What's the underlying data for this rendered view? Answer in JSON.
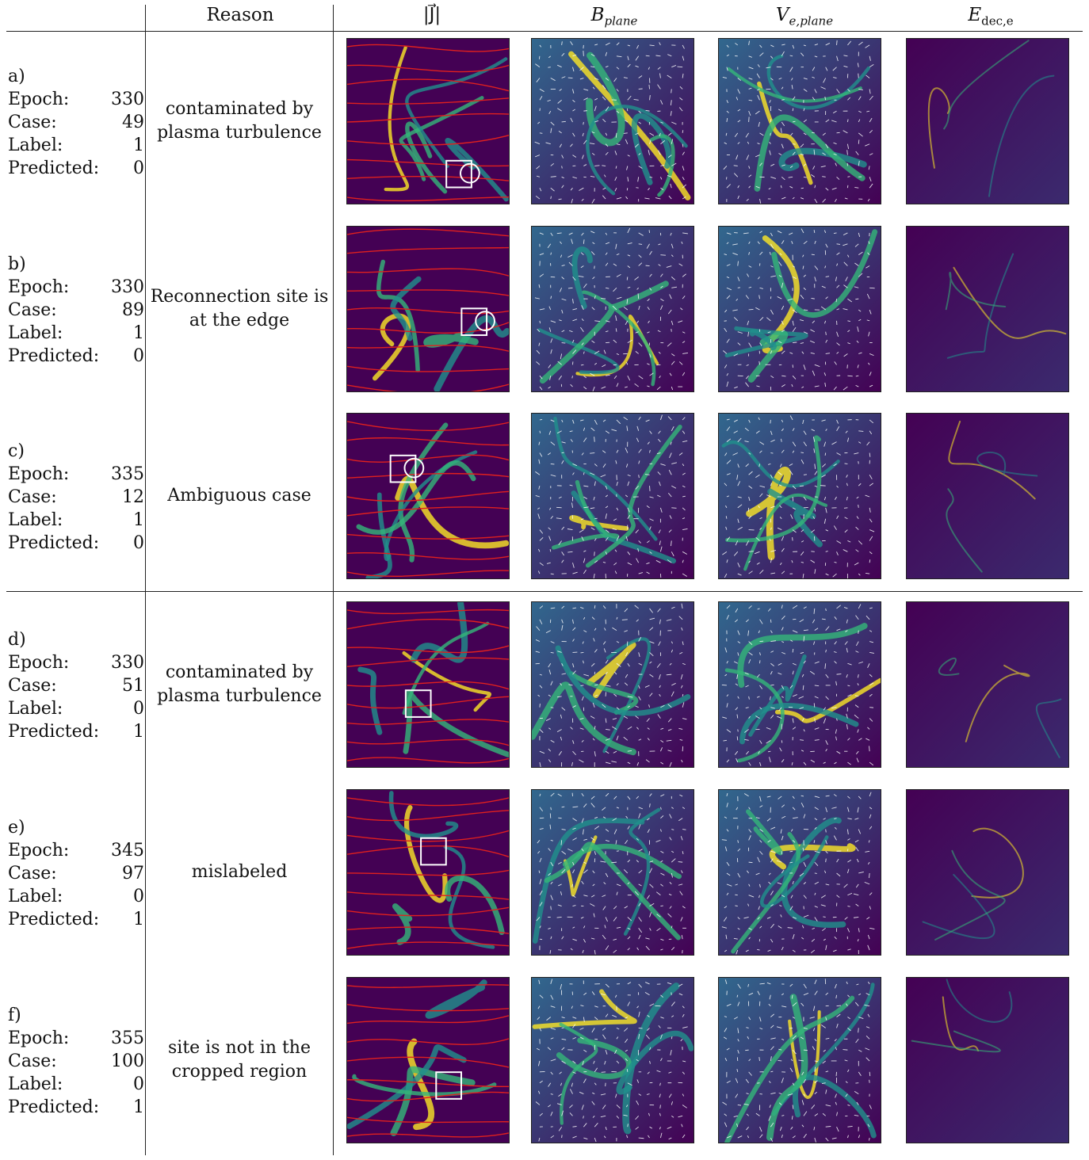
{
  "headers": {
    "reason": "Reason",
    "j": "|J⃗|",
    "b_base": "B",
    "b_sub": "plane",
    "v_base": "V",
    "v_sub": "e,plane",
    "e_base": "E",
    "e_sub": "dec,e"
  },
  "meta_labels": {
    "epoch": "Epoch:",
    "case": "Case:",
    "label": "Label:",
    "predicted": "Predicted:"
  },
  "rows": [
    {
      "id": "a)",
      "epoch": "330",
      "case": "49",
      "label": "1",
      "predicted": "0",
      "reason": "contaminated by plasma turbulence"
    },
    {
      "id": "b)",
      "epoch": "330",
      "case": "89",
      "label": "1",
      "predicted": "0",
      "reason": "Reconnection site is at the edge"
    },
    {
      "id": "c)",
      "epoch": "335",
      "case": "12",
      "label": "1",
      "predicted": "0",
      "reason": "Ambiguous case"
    },
    {
      "id": "d)",
      "epoch": "330",
      "case": "51",
      "label": "0",
      "predicted": "1",
      "reason": "contaminated by plasma turbulence"
    },
    {
      "id": "e)",
      "epoch": "345",
      "case": "97",
      "label": "0",
      "predicted": "1",
      "reason": "mislabeled"
    },
    {
      "id": "f)",
      "epoch": "355",
      "case": "100",
      "label": "0",
      "predicted": "1",
      "reason": "site is not in the cropped region"
    }
  ],
  "colors": {
    "viridis_dark": "#440154",
    "viridis_blue": "#31688e",
    "viridis_teal": "#21918c",
    "viridis_green": "#35b779",
    "viridis_yellow": "#fde725",
    "field_lines": "#e0201e",
    "box": "#ffffff"
  }
}
